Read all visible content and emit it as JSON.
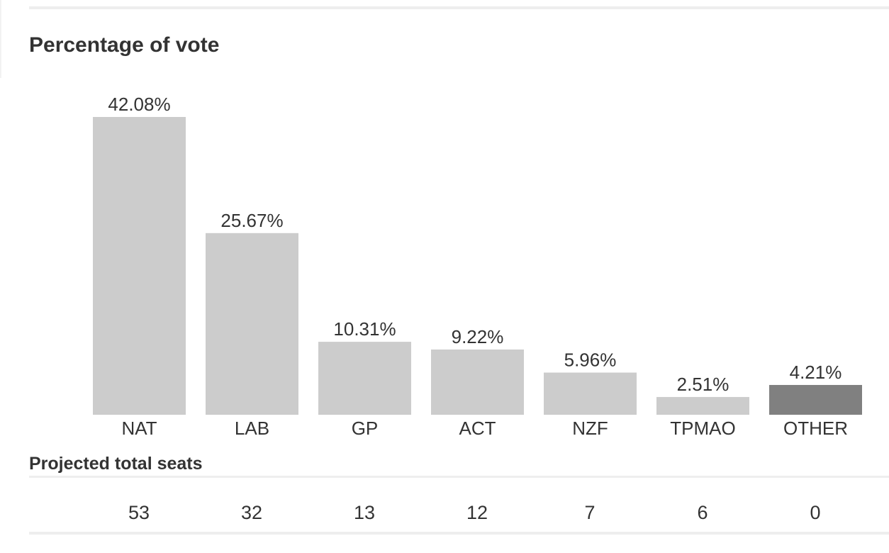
{
  "chart_data": {
    "type": "bar",
    "title": "Percentage of vote",
    "categories": [
      "NAT",
      "LAB",
      "GP",
      "ACT",
      "NZF",
      "TPMAO",
      "OTHER"
    ],
    "values": [
      42.08,
      25.67,
      10.31,
      9.22,
      5.96,
      2.51,
      4.21
    ],
    "value_labels": [
      "42.08%",
      "25.67%",
      "10.31%",
      "9.22%",
      "5.96%",
      "2.51%",
      "4.21%"
    ],
    "unit": "%",
    "ylim": [
      0,
      42.08
    ],
    "grid": false,
    "legend": "none",
    "colors": [
      "#cccccc",
      "#cccccc",
      "#cccccc",
      "#cccccc",
      "#cccccc",
      "#cccccc",
      "#808080"
    ]
  },
  "seats": {
    "title": "Projected total seats",
    "values": [
      "53",
      "32",
      "13",
      "12",
      "7",
      "6",
      "0"
    ]
  }
}
